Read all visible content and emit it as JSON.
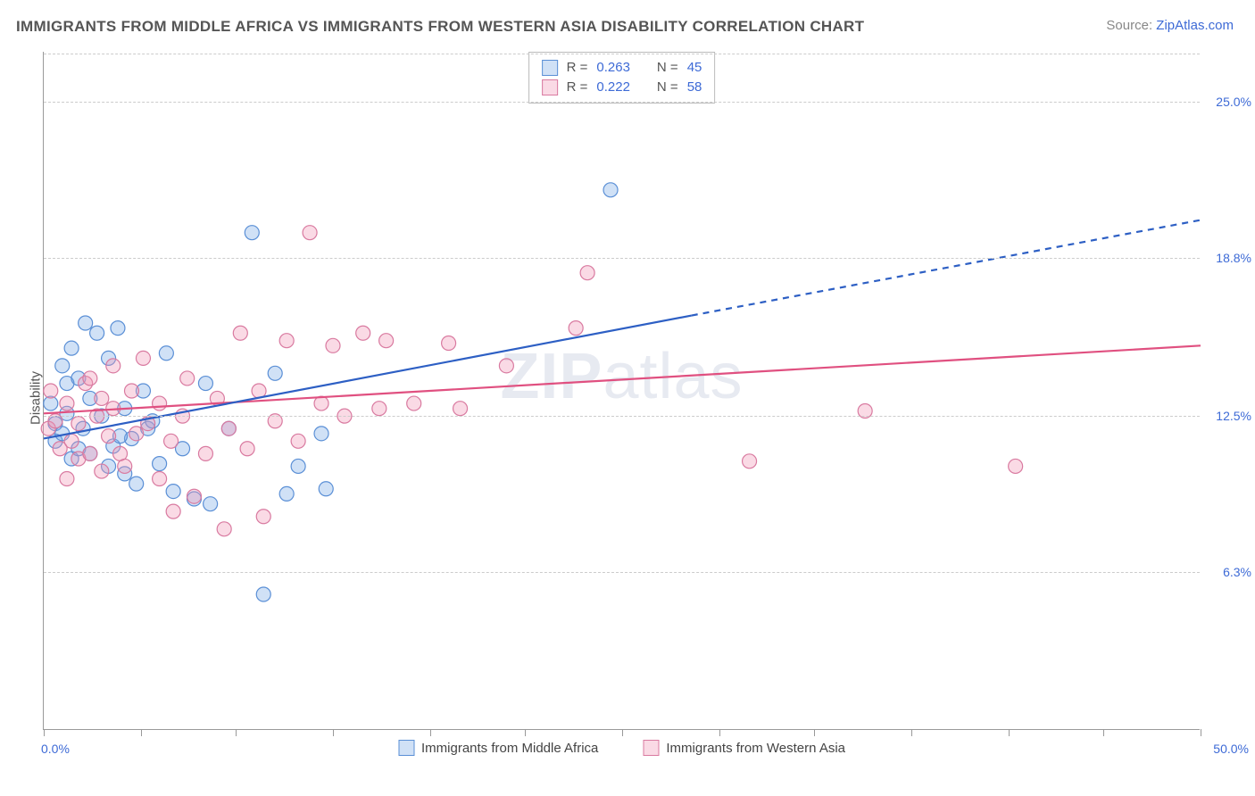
{
  "title": "IMMIGRANTS FROM MIDDLE AFRICA VS IMMIGRANTS FROM WESTERN ASIA DISABILITY CORRELATION CHART",
  "source_label": "Source: ",
  "source_name": "ZipAtlas.com",
  "ylabel": "Disability",
  "watermark_a": "ZIP",
  "watermark_b": "atlas",
  "chart": {
    "type": "scatter",
    "xlim": [
      0,
      50
    ],
    "ylim": [
      0,
      27
    ],
    "x_ticks": [
      0,
      4.2,
      8.3,
      12.5,
      16.7,
      20.8,
      25.0,
      29.2,
      33.3,
      37.5,
      41.7,
      45.8,
      50.0
    ],
    "x_tick_labels_shown": {
      "0": "0.0%",
      "50": "50.0%"
    },
    "y_grid": [
      6.3,
      12.5,
      18.8,
      25.0
    ],
    "y_grid_labels": [
      "6.3%",
      "12.5%",
      "18.8%",
      "25.0%"
    ],
    "background_color": "#ffffff",
    "grid_color": "#cccccc",
    "axis_color": "#999999",
    "value_color": "#3d6ad6",
    "marker_radius": 8,
    "marker_stroke_width": 1.2,
    "line_width": 2.2
  },
  "series": [
    {
      "key": "middle_africa",
      "label": "Immigrants from Middle Africa",
      "fill": "rgba(120,170,230,0.35)",
      "stroke": "#5a8fd6",
      "line_color": "#2d5fc4",
      "r_value": "0.263",
      "n_value": "45",
      "trend": {
        "x0": 0,
        "y0": 11.6,
        "x1": 28,
        "y1": 16.5,
        "x2": 50,
        "y2": 20.3
      },
      "points": [
        [
          0.3,
          13.0
        ],
        [
          0.5,
          11.5
        ],
        [
          0.5,
          12.2
        ],
        [
          0.8,
          14.5
        ],
        [
          0.8,
          11.8
        ],
        [
          1.0,
          12.6
        ],
        [
          1.0,
          13.8
        ],
        [
          1.2,
          15.2
        ],
        [
          1.2,
          10.8
        ],
        [
          1.5,
          11.2
        ],
        [
          1.5,
          14.0
        ],
        [
          1.7,
          12.0
        ],
        [
          1.8,
          16.2
        ],
        [
          2.0,
          13.2
        ],
        [
          2.0,
          11.0
        ],
        [
          2.3,
          15.8
        ],
        [
          2.5,
          12.5
        ],
        [
          2.8,
          10.5
        ],
        [
          2.8,
          14.8
        ],
        [
          3.0,
          11.3
        ],
        [
          3.2,
          16.0
        ],
        [
          3.5,
          10.2
        ],
        [
          3.5,
          12.8
        ],
        [
          3.8,
          11.6
        ],
        [
          4.0,
          9.8
        ],
        [
          4.3,
          13.5
        ],
        [
          4.5,
          12.0
        ],
        [
          5.0,
          10.6
        ],
        [
          5.3,
          15.0
        ],
        [
          5.6,
          9.5
        ],
        [
          6.0,
          11.2
        ],
        [
          6.5,
          9.2
        ],
        [
          7.0,
          13.8
        ],
        [
          7.2,
          9.0
        ],
        [
          8.0,
          12.0
        ],
        [
          9.0,
          19.8
        ],
        [
          9.5,
          5.4
        ],
        [
          10.0,
          14.2
        ],
        [
          10.5,
          9.4
        ],
        [
          11.0,
          10.5
        ],
        [
          12.0,
          11.8
        ],
        [
          12.2,
          9.6
        ],
        [
          24.5,
          21.5
        ],
        [
          3.3,
          11.7
        ],
        [
          4.7,
          12.3
        ]
      ]
    },
    {
      "key": "western_asia",
      "label": "Immigrants from Western Asia",
      "fill": "rgba(240,150,180,0.35)",
      "stroke": "#d97aa0",
      "line_color": "#e05080",
      "r_value": "0.222",
      "n_value": "58",
      "trend": {
        "x0": 0,
        "y0": 12.6,
        "x1": 50,
        "y1": 15.3,
        "x2": 50,
        "y2": 15.3
      },
      "points": [
        [
          0.2,
          12.0
        ],
        [
          0.3,
          13.5
        ],
        [
          0.5,
          12.3
        ],
        [
          0.7,
          11.2
        ],
        [
          1.0,
          10.0
        ],
        [
          1.0,
          13.0
        ],
        [
          1.2,
          11.5
        ],
        [
          1.5,
          12.2
        ],
        [
          1.5,
          10.8
        ],
        [
          1.8,
          13.8
        ],
        [
          2.0,
          11.0
        ],
        [
          2.0,
          14.0
        ],
        [
          2.3,
          12.5
        ],
        [
          2.5,
          10.3
        ],
        [
          2.5,
          13.2
        ],
        [
          2.8,
          11.7
        ],
        [
          3.0,
          12.8
        ],
        [
          3.0,
          14.5
        ],
        [
          3.3,
          11.0
        ],
        [
          3.5,
          10.5
        ],
        [
          3.8,
          13.5
        ],
        [
          4.0,
          11.8
        ],
        [
          4.3,
          14.8
        ],
        [
          4.5,
          12.2
        ],
        [
          5.0,
          10.0
        ],
        [
          5.0,
          13.0
        ],
        [
          5.5,
          11.5
        ],
        [
          5.6,
          8.7
        ],
        [
          6.0,
          12.5
        ],
        [
          6.2,
          14.0
        ],
        [
          6.5,
          9.3
        ],
        [
          7.0,
          11.0
        ],
        [
          7.5,
          13.2
        ],
        [
          7.8,
          8.0
        ],
        [
          8.0,
          12.0
        ],
        [
          8.5,
          15.8
        ],
        [
          8.8,
          11.2
        ],
        [
          9.3,
          13.5
        ],
        [
          9.5,
          8.5
        ],
        [
          10.0,
          12.3
        ],
        [
          10.5,
          15.5
        ],
        [
          11.0,
          11.5
        ],
        [
          11.5,
          19.8
        ],
        [
          12.0,
          13.0
        ],
        [
          12.5,
          15.3
        ],
        [
          13.0,
          12.5
        ],
        [
          13.8,
          15.8
        ],
        [
          14.5,
          12.8
        ],
        [
          14.8,
          15.5
        ],
        [
          16.0,
          13.0
        ],
        [
          17.5,
          15.4
        ],
        [
          18.0,
          12.8
        ],
        [
          20.0,
          14.5
        ],
        [
          23.0,
          16.0
        ],
        [
          23.5,
          18.2
        ],
        [
          30.5,
          10.7
        ],
        [
          35.5,
          12.7
        ],
        [
          42.0,
          10.5
        ]
      ]
    }
  ],
  "stats_labels": {
    "r": "R =",
    "n": "N ="
  }
}
